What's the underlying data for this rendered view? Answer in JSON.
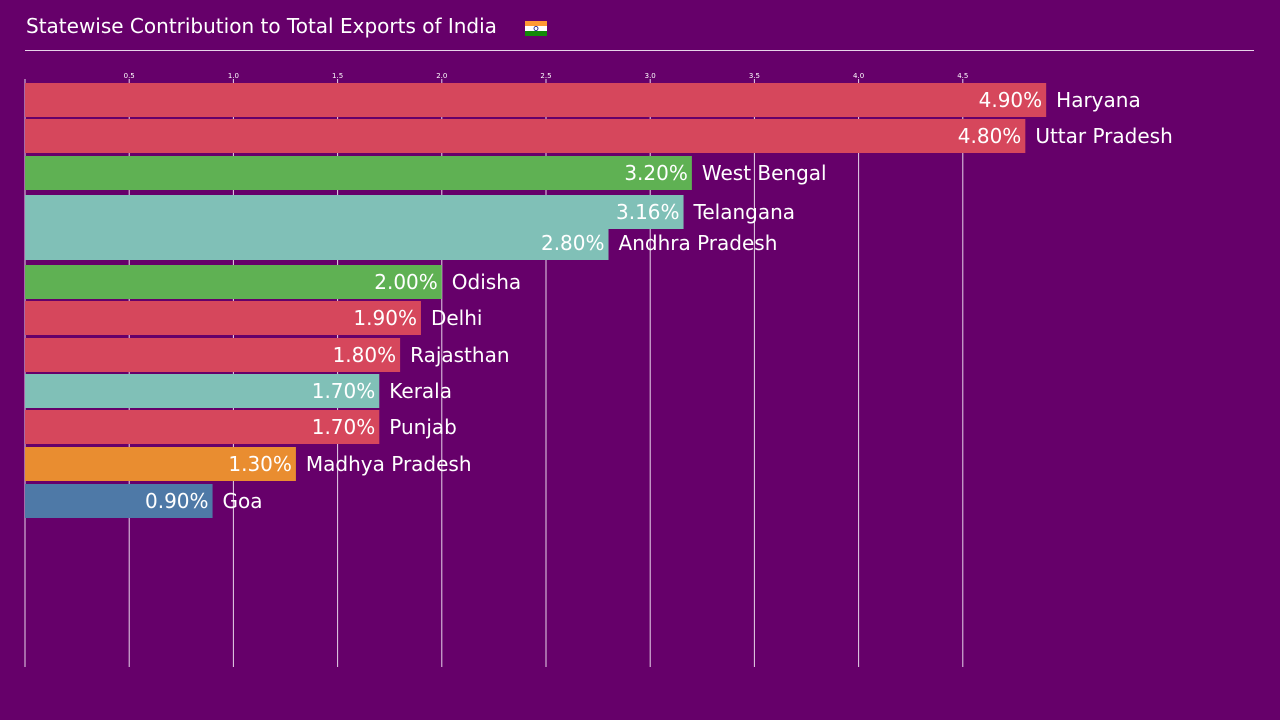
{
  "chart_data": {
    "type": "bar",
    "orientation": "horizontal",
    "title": "Statewise Contribution to Total Exports of India",
    "title_flag": "india-flag-icon",
    "categories": [
      "Haryana",
      "Uttar Pradesh",
      "West Bengal",
      "Telangana",
      "Andhra Pradesh",
      "Odisha",
      "Delhi",
      "Rajasthan",
      "Kerala",
      "Punjab",
      "Madhya Pradesh",
      "Goa"
    ],
    "values": [
      4.9,
      4.8,
      3.2,
      3.16,
      2.8,
      2.0,
      1.9,
      1.8,
      1.7,
      1.7,
      1.3,
      0.9
    ],
    "value_labels": [
      "4.90%",
      "4.80%",
      "3.20%",
      "3.16%",
      "2.80%",
      "2.00%",
      "1.90%",
      "1.80%",
      "1.70%",
      "1.70%",
      "1.30%",
      "0.90%"
    ],
    "bar_colors": [
      "#d6475c",
      "#d6475c",
      "#5fb153",
      "#80c0b7",
      "#80c0b7",
      "#5fb153",
      "#d6475c",
      "#d6475c",
      "#80c0b7",
      "#d6475c",
      "#e98d30",
      "#4e79a7"
    ],
    "xlim": [
      0,
      5.0
    ],
    "xticks": [
      0.5,
      1.0,
      1.5,
      2.0,
      2.5,
      3.0,
      3.5,
      4.0,
      4.5
    ],
    "xtick_labels": [
      "0.5",
      "1.0",
      "1.5",
      "2.0",
      "2.5",
      "3.0",
      "3.5",
      "4.0",
      "4.5"
    ],
    "xaxis_position": "top",
    "grid": true,
    "legend": false,
    "colors": {
      "background": "#66006a",
      "text": "#ffffff",
      "grid": "#e8d4ea"
    }
  }
}
